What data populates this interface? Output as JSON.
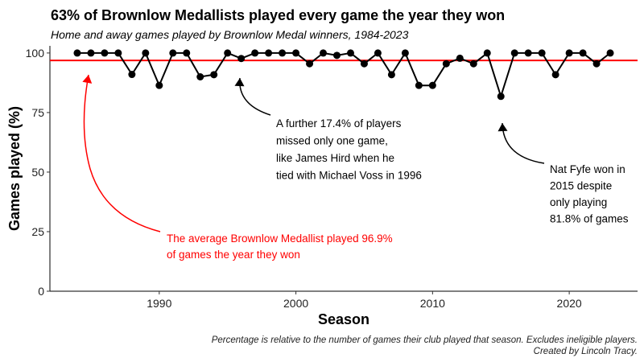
{
  "chart_data": {
    "type": "line",
    "title": "63% of Brownlow Medallists played every game the year they won",
    "subtitle": "Home and away games played by Brownlow Medal winners, 1984-2023",
    "xlabel": "Season",
    "ylabel": "Games played (%)",
    "xlim": [
      1982,
      2025
    ],
    "ylim": [
      0,
      103
    ],
    "x_ticks": [
      1990,
      2000,
      2010,
      2020
    ],
    "y_ticks": [
      0,
      25,
      50,
      75,
      100
    ],
    "x": [
      1984,
      1985,
      1986,
      1987,
      1988,
      1989,
      1990,
      1991,
      1992,
      1993,
      1994,
      1995,
      1996,
      1997,
      1998,
      1999,
      2000,
      2001,
      2002,
      2003,
      2004,
      2005,
      2006,
      2007,
      2008,
      2009,
      2010,
      2011,
      2012,
      2013,
      2014,
      2015,
      2016,
      2017,
      2018,
      2019,
      2020,
      2021,
      2022,
      2023
    ],
    "y": [
      100,
      100,
      100,
      100,
      91,
      100,
      86.4,
      100,
      100,
      90,
      90.9,
      100,
      97.7,
      100,
      100,
      100,
      100,
      95.5,
      100,
      99,
      100,
      95.5,
      100,
      90.9,
      100,
      86.4,
      86.4,
      95.5,
      97.8,
      95.5,
      100,
      81.8,
      100,
      100,
      100,
      90.9,
      100,
      100,
      95.5,
      100
    ],
    "reference_line": {
      "value": 96.9,
      "color": "#ff0000"
    },
    "annotations": [
      {
        "text": [
          "A further 17.4% of players",
          "missed only one game,",
          "like James Hird when he",
          "tied with Michael Voss in 1996"
        ],
        "target_x": 1996,
        "target_y": 97.7,
        "color": "#000000"
      },
      {
        "text": [
          "Nat Fyfe won in",
          "2015 despite",
          "only playing",
          "81.8% of games"
        ],
        "target_x": 2015,
        "target_y": 81.8,
        "color": "#000000"
      },
      {
        "text": [
          "The average Brownlow Medallist played 96.9%",
          "of games the year they won"
        ],
        "target_x": 1985,
        "target_y": 96.9,
        "color": "#ff0000"
      }
    ],
    "caption": [
      "Percentage is relative to the number of games their club played that season. Excludes ineligible players.",
      "Created by Lincoln Tracy."
    ],
    "grid": false,
    "line_color": "#000000"
  }
}
